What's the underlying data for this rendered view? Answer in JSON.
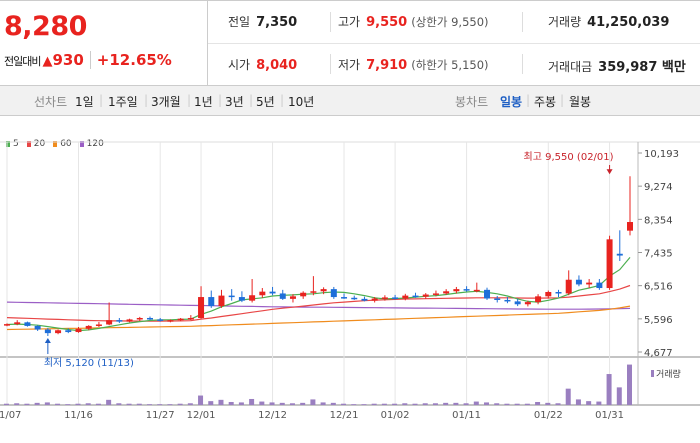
{
  "summary": {
    "price": "8,280",
    "change_label": "전일대비",
    "change_arrow": "▲",
    "change_value": "930",
    "change_pct": "+12.65%"
  },
  "stats": {
    "prev_close_label": "전일",
    "prev_close": "7,350",
    "high_label": "고가",
    "high": "9,550",
    "upper_limit": "(상한가 9,550)",
    "volume_label": "거래량",
    "volume": "41,250,039",
    "open_label": "시가",
    "open": "8,040",
    "low_label": "저가",
    "low": "7,910",
    "lower_limit": "(하한가 5,150)",
    "value_label": "거래대금",
    "value": "359,987 백만"
  },
  "tabs": {
    "line_head": "선차트",
    "line_items": [
      "1일",
      "1주일",
      "3개월",
      "1년",
      "3년",
      "5년",
      "10년"
    ],
    "candle_head": "봉차트",
    "candle_items": [
      "일봉",
      "주봉",
      "월봉"
    ],
    "candle_active": "일봉"
  },
  "legend": [
    {
      "name": "5",
      "color": "#4caf50"
    },
    {
      "name": "20",
      "color": "#e84646"
    },
    {
      "name": "60",
      "color": "#f08c1e"
    },
    {
      "name": "120",
      "color": "#9b5fc6"
    }
  ],
  "chart_data": {
    "type": "candlestick",
    "y_ticks": [
      "10,193",
      "9,274",
      "8,354",
      "7,435",
      "6,516",
      "5,596",
      "4,677"
    ],
    "y_tick_values": [
      10193,
      9274,
      8354,
      7435,
      6516,
      5596,
      4677
    ],
    "ylim": [
      4677,
      10193
    ],
    "x_ticks": [
      "11/07",
      "11/16",
      "11/27",
      "12/01",
      "12/12",
      "12/21",
      "01/02",
      "01/11",
      "01/22",
      "01/31"
    ],
    "x_tick_index": [
      0,
      7,
      15,
      19,
      26,
      33,
      38,
      45,
      53,
      59
    ],
    "annotations": {
      "high": {
        "label": "최고 9,550 (02/01)",
        "index": 59,
        "value": 9550
      },
      "low": {
        "label": "최저 5,120 (11/13)",
        "index": 4,
        "value": 5120
      }
    },
    "volume_label": "거래량",
    "candles": [
      [
        5430,
        5470,
        5390,
        5450
      ],
      [
        5450,
        5560,
        5420,
        5500
      ],
      [
        5500,
        5520,
        5380,
        5400
      ],
      [
        5400,
        5420,
        5260,
        5300
      ],
      [
        5300,
        5340,
        5120,
        5200
      ],
      [
        5200,
        5300,
        5170,
        5280
      ],
      [
        5280,
        5330,
        5200,
        5230
      ],
      [
        5230,
        5370,
        5210,
        5320
      ],
      [
        5320,
        5420,
        5280,
        5400
      ],
      [
        5400,
        5510,
        5370,
        5440
      ],
      [
        5440,
        6050,
        5420,
        5560
      ],
      [
        5560,
        5620,
        5480,
        5520
      ],
      [
        5520,
        5600,
        5500,
        5580
      ],
      [
        5580,
        5650,
        5540,
        5620
      ],
      [
        5620,
        5660,
        5560,
        5580
      ],
      [
        5580,
        5620,
        5520,
        5540
      ],
      [
        5540,
        5580,
        5500,
        5560
      ],
      [
        5560,
        5620,
        5530,
        5600
      ],
      [
        5600,
        5700,
        5560,
        5620
      ],
      [
        5620,
        6500,
        5600,
        6200
      ],
      [
        6200,
        6380,
        5900,
        5950
      ],
      [
        5950,
        6400,
        5900,
        6240
      ],
      [
        6240,
        6420,
        6100,
        6200
      ],
      [
        6200,
        6360,
        6060,
        6100
      ],
      [
        6100,
        6700,
        6050,
        6250
      ],
      [
        6250,
        6450,
        6180,
        6350
      ],
      [
        6350,
        6480,
        6250,
        6300
      ],
      [
        6300,
        6400,
        6120,
        6150
      ],
      [
        6150,
        6280,
        6050,
        6220
      ],
      [
        6220,
        6360,
        6150,
        6320
      ],
      [
        6320,
        6780,
        6250,
        6360
      ],
      [
        6360,
        6470,
        6280,
        6420
      ],
      [
        6420,
        6480,
        6150,
        6200
      ],
      [
        6200,
        6300,
        6150,
        6180
      ],
      [
        6180,
        6240,
        6120,
        6150
      ],
      [
        6150,
        6210,
        6080,
        6100
      ],
      [
        6100,
        6200,
        6050,
        6160
      ],
      [
        6160,
        6250,
        6100,
        6190
      ],
      [
        6190,
        6260,
        6130,
        6160
      ],
      [
        6160,
        6290,
        6110,
        6240
      ],
      [
        6240,
        6320,
        6180,
        6210
      ],
      [
        6210,
        6310,
        6150,
        6270
      ],
      [
        6270,
        6380,
        6220,
        6300
      ],
      [
        6300,
        6420,
        6260,
        6360
      ],
      [
        6360,
        6480,
        6300,
        6420
      ],
      [
        6420,
        6500,
        6350,
        6380
      ],
      [
        6380,
        6600,
        6330,
        6400
      ],
      [
        6400,
        6460,
        6120,
        6160
      ],
      [
        6160,
        6230,
        6050,
        6120
      ],
      [
        6120,
        6200,
        6030,
        6080
      ],
      [
        6080,
        6150,
        5950,
        6000
      ],
      [
        6000,
        6100,
        5940,
        6060
      ],
      [
        6060,
        6280,
        6000,
        6220
      ],
      [
        6220,
        6380,
        6160,
        6340
      ],
      [
        6340,
        6400,
        6200,
        6300
      ],
      [
        6300,
        6940,
        6250,
        6680
      ],
      [
        6680,
        6800,
        6500,
        6550
      ],
      [
        6550,
        6700,
        6450,
        6600
      ],
      [
        6600,
        6700,
        6400,
        6450
      ],
      [
        6450,
        7900,
        6400,
        7800
      ],
      [
        7400,
        8050,
        7200,
        7350
      ],
      [
        8040,
        9550,
        7910,
        8280
      ]
    ],
    "volumes": [
      0.03,
      0.04,
      0.03,
      0.05,
      0.06,
      0.03,
      0.02,
      0.03,
      0.04,
      0.03,
      0.12,
      0.04,
      0.03,
      0.03,
      0.02,
      0.02,
      0.02,
      0.03,
      0.04,
      0.22,
      0.09,
      0.12,
      0.07,
      0.06,
      0.14,
      0.08,
      0.06,
      0.05,
      0.04,
      0.05,
      0.13,
      0.06,
      0.05,
      0.03,
      0.02,
      0.02,
      0.03,
      0.03,
      0.03,
      0.04,
      0.03,
      0.04,
      0.04,
      0.05,
      0.05,
      0.04,
      0.08,
      0.06,
      0.04,
      0.03,
      0.03,
      0.03,
      0.07,
      0.05,
      0.04,
      0.38,
      0.13,
      0.09,
      0.08,
      0.72,
      0.41,
      0.94
    ],
    "ma5": [
      5440,
      5450,
      5440,
      5420,
      5380,
      5340,
      5300,
      5270,
      5290,
      5330,
      5380,
      5430,
      5480,
      5520,
      5550,
      5570,
      5570,
      5580,
      5590,
      5720,
      5810,
      5930,
      6020,
      6120,
      6150,
      6180,
      6230,
      6250,
      6260,
      6280,
      6290,
      6320,
      6340,
      6330,
      6290,
      6240,
      6180,
      6150,
      6160,
      6170,
      6200,
      6220,
      6240,
      6270,
      6310,
      6340,
      6360,
      6330,
      6290,
      6230,
      6150,
      6080,
      6060,
      6110,
      6170,
      6280,
      6390,
      6450,
      6520,
      6780,
      6960,
      7300
    ],
    "ma20": [
      5630,
      5620,
      5610,
      5600,
      5590,
      5580,
      5570,
      5560,
      5550,
      5545,
      5540,
      5538,
      5535,
      5533,
      5530,
      5532,
      5535,
      5540,
      5545,
      5590,
      5620,
      5660,
      5700,
      5740,
      5780,
      5820,
      5860,
      5890,
      5920,
      5950,
      5980,
      6010,
      6040,
      6060,
      6080,
      6100,
      6115,
      6125,
      6135,
      6145,
      6150,
      6155,
      6160,
      6165,
      6170,
      6175,
      6180,
      6180,
      6180,
      6178,
      6175,
      6170,
      6170,
      6175,
      6180,
      6200,
      6230,
      6260,
      6290,
      6350,
      6420,
      6520
    ],
    "ma60": [
      5300,
      5305,
      5310,
      5315,
      5320,
      5325,
      5330,
      5335,
      5340,
      5345,
      5350,
      5355,
      5360,
      5365,
      5370,
      5375,
      5380,
      5385,
      5390,
      5400,
      5410,
      5420,
      5430,
      5440,
      5450,
      5460,
      5470,
      5480,
      5490,
      5500,
      5510,
      5520,
      5530,
      5540,
      5550,
      5560,
      5570,
      5580,
      5590,
      5600,
      5610,
      5620,
      5630,
      5640,
      5650,
      5660,
      5670,
      5680,
      5690,
      5700,
      5710,
      5720,
      5730,
      5740,
      5750,
      5770,
      5790,
      5810,
      5830,
      5860,
      5900,
      5950
    ],
    "ma120": [
      6060,
      6055,
      6050,
      6045,
      6040,
      6035,
      6030,
      6025,
      6020,
      6015,
      6010,
      6005,
      6000,
      5995,
      5990,
      5985,
      5980,
      5975,
      5970,
      5965,
      5960,
      5955,
      5950,
      5945,
      5940,
      5935,
      5930,
      5928,
      5925,
      5922,
      5920,
      5918,
      5915,
      5912,
      5910,
      5908,
      5905,
      5903,
      5900,
      5898,
      5895,
      5893,
      5890,
      5888,
      5885,
      5883,
      5880,
      5878,
      5875,
      5873,
      5870,
      5868,
      5866,
      5864,
      5862,
      5862,
      5863,
      5865,
      5868,
      5872,
      5878,
      5885
    ]
  }
}
